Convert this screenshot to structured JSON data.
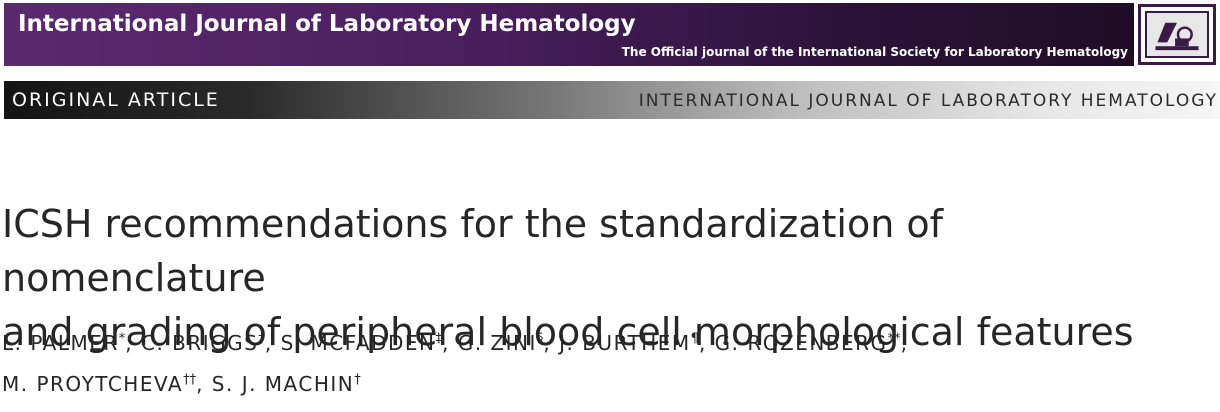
{
  "header": {
    "journal_name": "International Journal of Laboratory Hematology",
    "tagline": "The Official journal of the International Society for Laboratory Hematology",
    "logo_icon": "microscope-icon"
  },
  "section_bar": {
    "left": "ORIGINAL ARTICLE",
    "right": "INTERNATIONAL JOURNAL OF LABORATORY HEMATOLOGY"
  },
  "article": {
    "title_line1": "ICSH recommendations for the standardization of nomenclature",
    "title_line2": "and grading of peripheral blood cell morphological features",
    "authors": [
      {
        "name": "L. PALMER",
        "mark": "*"
      },
      {
        "name": "C. BRIGGS",
        "mark": "†"
      },
      {
        "name": "S. MCFADDEN",
        "mark": "‡"
      },
      {
        "name": "G. ZINI",
        "mark": "§"
      },
      {
        "name": "J. BURTHEM",
        "mark": "¶"
      },
      {
        "name": "G. ROZENBERG",
        "mark": "**"
      },
      {
        "name": "M. PROYTCHEVA",
        "mark": "††"
      },
      {
        "name": "S. J. MACHIN",
        "mark": "†"
      }
    ]
  }
}
